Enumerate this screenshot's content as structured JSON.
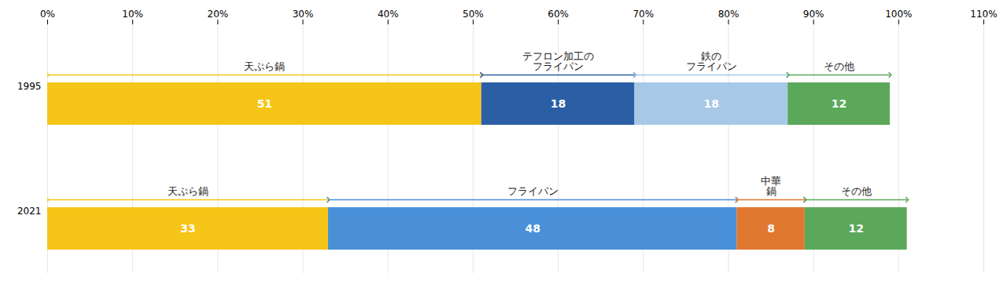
{
  "chart_data": {
    "type": "bar",
    "orientation": "horizontal",
    "stacked": true,
    "data_labels": true,
    "grid": true,
    "categories": [
      "1995",
      "2021"
    ],
    "series": [
      {
        "name": "天ぷら鍋",
        "color": "#F5C518",
        "values": [
          51,
          33
        ]
      },
      {
        "name": "テフロン加工の\nフライパン",
        "color": "#2B5FA5",
        "values": [
          18,
          null
        ]
      },
      {
        "name": "鉄の\nフライパン",
        "color": "#A8C8E8",
        "values": [
          18,
          null
        ]
      },
      {
        "name": "フライパン",
        "color": "#4A90D9",
        "values": [
          null,
          48
        ]
      },
      {
        "name": "中華\n鍋",
        "color": "#E07830",
        "values": [
          null,
          8
        ]
      },
      {
        "name": "その他",
        "color": "#5BA85A",
        "values": [
          12,
          12
        ]
      }
    ],
    "xlim": [
      0,
      110
    ],
    "xticks": [
      {
        "value": 0,
        "label": "0%"
      },
      {
        "value": 10,
        "label": "10%"
      },
      {
        "value": 20,
        "label": "20%"
      },
      {
        "value": 30,
        "label": "30%"
      },
      {
        "value": 40,
        "label": "40%"
      },
      {
        "value": 50,
        "label": "50%"
      },
      {
        "value": 60,
        "label": "60%"
      },
      {
        "value": 70,
        "label": "70%"
      },
      {
        "value": 80,
        "label": "80%"
      },
      {
        "value": 90,
        "label": "90%"
      },
      {
        "value": 100,
        "label": "100%"
      },
      {
        "value": 110,
        "label": "110%"
      }
    ]
  }
}
